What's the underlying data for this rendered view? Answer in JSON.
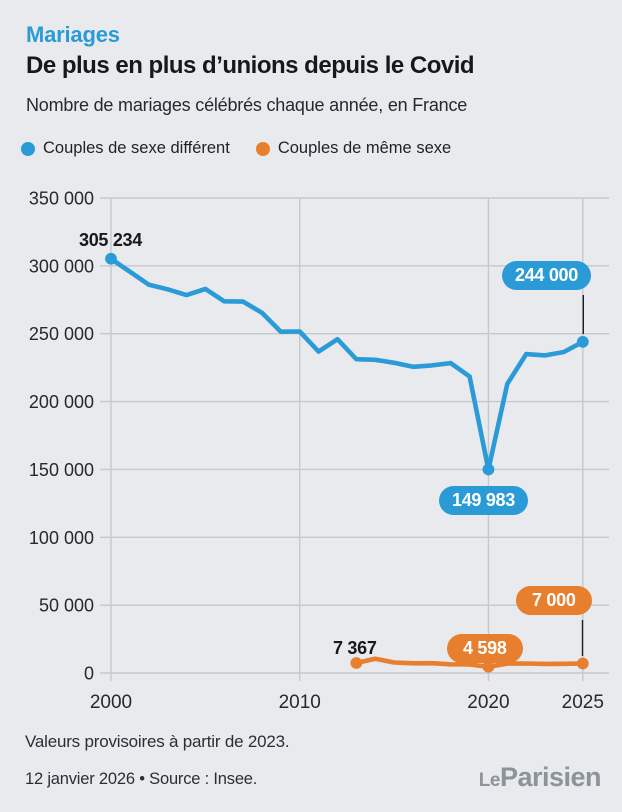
{
  "page": {
    "background": "#e8eaed"
  },
  "header": {
    "kicker": "Mariages",
    "title": "De plus en plus d’unions depuis le Covid",
    "subtitle": "Nombre de mariages célébrés chaque année, en France"
  },
  "legend": [
    {
      "label": "Couples de sexe différent",
      "color": "#2b9bd7"
    },
    {
      "label": "Couples de même sexe",
      "color": "#e87f2e"
    }
  ],
  "chart_data": {
    "type": "line",
    "title": "Nombre de mariages célébrés chaque année, en France",
    "xlabel": "",
    "ylabel": "",
    "ylim": [
      0,
      350000
    ],
    "xlim": [
      2000,
      2025
    ],
    "grid": true,
    "legend_position": "top",
    "yticks": [
      {
        "value": 0,
        "label": "0"
      },
      {
        "value": 50000,
        "label": "50 000"
      },
      {
        "value": 100000,
        "label": "100 000"
      },
      {
        "value": 150000,
        "label": "150 000"
      },
      {
        "value": 200000,
        "label": "200 000"
      },
      {
        "value": 250000,
        "label": "250 000"
      },
      {
        "value": 300000,
        "label": "300 000"
      },
      {
        "value": 350000,
        "label": "350 000"
      }
    ],
    "xticks": [
      {
        "year": 2000,
        "label": "2000"
      },
      {
        "year": 2010,
        "label": "2010"
      },
      {
        "year": 2020,
        "label": "2020"
      },
      {
        "year": 2025,
        "label": "2025"
      }
    ],
    "series": [
      {
        "name": "Couples de sexe différent",
        "color": "#2b9bd7",
        "x": [
          2000,
          2001,
          2002,
          2003,
          2004,
          2005,
          2006,
          2007,
          2008,
          2009,
          2010,
          2011,
          2012,
          2013,
          2014,
          2015,
          2016,
          2017,
          2018,
          2019,
          2020,
          2021,
          2022,
          2023,
          2024,
          2025
        ],
        "values": [
          305234,
          295720,
          286169,
          282756,
          278439,
          283036,
          273914,
          273669,
          265404,
          251478,
          251654,
          236826,
          245930,
          231225,
          230770,
          228565,
          225612,
          226671,
          228349,
          218468,
          149983,
          213000,
          235000,
          234000,
          236500,
          244000
        ],
        "marker_years": [
          2000,
          2020,
          2025
        ]
      },
      {
        "name": "Couples de même sexe",
        "color": "#e87f2e",
        "x": [
          2013,
          2014,
          2015,
          2016,
          2017,
          2018,
          2019,
          2020,
          2021,
          2022,
          2023,
          2024,
          2025
        ],
        "values": [
          7367,
          10522,
          7751,
          7113,
          7244,
          6386,
          6272,
          4598,
          6900,
          7000,
          6700,
          6800,
          7000
        ],
        "marker_years": [
          2013,
          2020,
          2025
        ]
      }
    ],
    "annotations": [
      {
        "series": "Couples de sexe différent",
        "year": 2000,
        "value": 305234,
        "text": "305 234",
        "style": "plain"
      },
      {
        "series": "Couples de sexe différent",
        "year": 2020,
        "value": 149983,
        "text": "149 983",
        "style": "badge-blue"
      },
      {
        "series": "Couples de sexe différent",
        "year": 2025,
        "value": 244000,
        "text": "244 000",
        "style": "badge-blue"
      },
      {
        "series": "Couples de même sexe",
        "year": 2013,
        "value": 7367,
        "text": "7 367",
        "style": "plain"
      },
      {
        "series": "Couples de même sexe",
        "year": 2020,
        "value": 4598,
        "text": "4 598",
        "style": "badge-orange"
      },
      {
        "series": "Couples de même sexe",
        "year": 2025,
        "value": 7000,
        "text": "7 000",
        "style": "badge-orange"
      }
    ]
  },
  "footer": {
    "note": "Valeurs provisoires à partir de 2023.",
    "source_line": "12 janvier 2026 • Source : Insee.",
    "logo_le": "Le",
    "logo_parisien": "Parisien"
  }
}
